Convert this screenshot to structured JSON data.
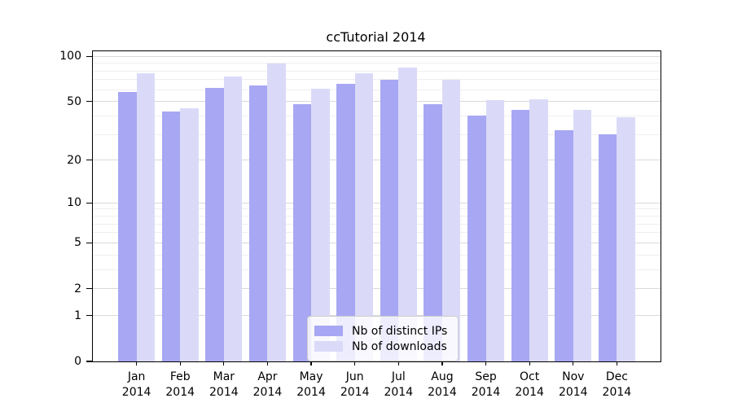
{
  "title": "ccTutorial 2014",
  "chart_data": {
    "type": "bar",
    "scale": "log1p",
    "title": "ccTutorial 2014",
    "xlabel": "",
    "ylabel": "",
    "categories": [
      "Jan",
      "Feb",
      "Mar",
      "Apr",
      "May",
      "Jun",
      "Jul",
      "Aug",
      "Sep",
      "Oct",
      "Nov",
      "Dec"
    ],
    "category_year": "2014",
    "series": [
      {
        "name": "Nb of distinct IPs",
        "color": "#a7a7f3",
        "values": [
          58,
          43,
          62,
          64,
          48,
          66,
          70,
          48,
          40,
          44,
          32,
          30
        ]
      },
      {
        "name": "Nb of downloads",
        "color": "#dadaf8",
        "values": [
          77,
          45,
          73,
          90,
          61,
          77,
          84,
          70,
          51,
          52,
          44,
          39
        ]
      }
    ],
    "y_ticks": [
      100,
      50,
      20,
      10,
      5,
      2,
      1,
      0
    ],
    "y_minor_ticks": [
      3,
      4,
      6,
      7,
      8,
      9,
      30,
      40,
      60,
      70,
      80,
      90
    ],
    "ylim": [
      0,
      108
    ],
    "grid": true,
    "legend_position": "lower center"
  },
  "colors": {
    "series_ips": "#a7a7f3",
    "series_downloads": "#dadaf8",
    "grid_major": "#d9d9d9",
    "grid_minor": "#efefef",
    "axis": "#000000",
    "background": "#ffffff"
  }
}
